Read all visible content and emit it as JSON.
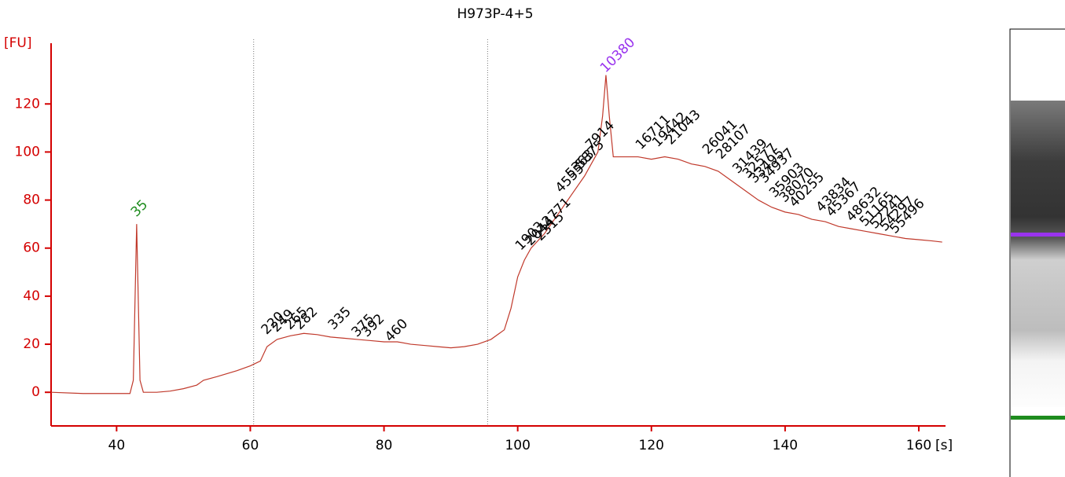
{
  "chart_data": {
    "type": "line",
    "title": "H973P-4+5",
    "ylabel": "[FU]",
    "xlabel": "[s]",
    "color": "#c0392b",
    "axis_color": "#d40000",
    "xlim": [
      30.2,
      164
    ],
    "ylim": [
      -14,
      142
    ],
    "xticks": [
      40,
      60,
      80,
      100,
      120,
      140,
      160
    ],
    "yticks": [
      0,
      20,
      40,
      60,
      80,
      100,
      120
    ],
    "vlines": [
      60.5,
      95.5
    ],
    "x": [
      30.2,
      35,
      38,
      42,
      42.5,
      43,
      43.5,
      44,
      46,
      48,
      50,
      52,
      53,
      55,
      58,
      60,
      61.5,
      62.5,
      64,
      66,
      68,
      70,
      72,
      74,
      76,
      78,
      80,
      82,
      84,
      86,
      88,
      90,
      92,
      94,
      96,
      98,
      99,
      100,
      101,
      102,
      104,
      106,
      108,
      110,
      111,
      112,
      112.7,
      113.2,
      113.7,
      114.3,
      116,
      118,
      120,
      122,
      124,
      126,
      128,
      130,
      132,
      134,
      136,
      138,
      140,
      142,
      144,
      146,
      148,
      150,
      152,
      154,
      156,
      158,
      160,
      162,
      163.5
    ],
    "y": [
      0,
      -0.5,
      -0.5,
      -0.5,
      5,
      70,
      5,
      0,
      0,
      0.5,
      1.5,
      3,
      5,
      6.5,
      9,
      11,
      13,
      19,
      22,
      23.5,
      24.5,
      24,
      23,
      22.5,
      22,
      21.5,
      21,
      21,
      20,
      19.5,
      19,
      18.5,
      19,
      20,
      22,
      26,
      35,
      48,
      55,
      60,
      66,
      74,
      82,
      90,
      95,
      100,
      115,
      132,
      115,
      98,
      98,
      98,
      97,
      98,
      97,
      95,
      94,
      92,
      88,
      84,
      80,
      77,
      75,
      74,
      72,
      71,
      69,
      68,
      67,
      66,
      65,
      64,
      63.5,
      63,
      62.5
    ],
    "peaks": [
      {
        "label": "35",
        "x": 43,
        "y": 72,
        "color": "#1e8c1e"
      },
      {
        "label": "220",
        "x": 62.5,
        "y": 23,
        "color": "#000000"
      },
      {
        "label": "249",
        "x": 64,
        "y": 24,
        "color": "#000000"
      },
      {
        "label": "265",
        "x": 66,
        "y": 25,
        "color": "#000000"
      },
      {
        "label": "282",
        "x": 67.5,
        "y": 25,
        "color": "#000000"
      },
      {
        "label": "335",
        "x": 72.5,
        "y": 25,
        "color": "#000000"
      },
      {
        "label": "375",
        "x": 76,
        "y": 22,
        "color": "#000000"
      },
      {
        "label": "392",
        "x": 77.5,
        "y": 22,
        "color": "#000000"
      },
      {
        "label": "460",
        "x": 81,
        "y": 20,
        "color": "#000000"
      },
      {
        "label": "1903",
        "x": 100.5,
        "y": 58,
        "color": "#000000"
      },
      {
        "label": "2044",
        "x": 102,
        "y": 60,
        "color": "#000000"
      },
      {
        "label": "2315",
        "x": 103.5,
        "y": 62,
        "color": "#000000"
      },
      {
        "label": "2771",
        "x": 104.5,
        "y": 68,
        "color": "#000000"
      },
      {
        "label": "4555",
        "x": 106.5,
        "y": 82,
        "color": "#000000"
      },
      {
        "label": "5363",
        "x": 108,
        "y": 88,
        "color": "#000000"
      },
      {
        "label": "5875",
        "x": 109.5,
        "y": 92,
        "color": "#000000"
      },
      {
        "label": "7914",
        "x": 111,
        "y": 100,
        "color": "#000000"
      },
      {
        "label": "10380",
        "x": 113.2,
        "y": 132,
        "color": "#9933ee"
      },
      {
        "label": "16711",
        "x": 118.5,
        "y": 100,
        "color": "#000000"
      },
      {
        "label": "19442",
        "x": 121,
        "y": 101,
        "color": "#000000"
      },
      {
        "label": "21043",
        "x": 123,
        "y": 102,
        "color": "#000000"
      },
      {
        "label": "26041",
        "x": 128.5,
        "y": 98,
        "color": "#000000"
      },
      {
        "label": "28107",
        "x": 130.5,
        "y": 96,
        "color": "#000000"
      },
      {
        "label": "31439",
        "x": 133,
        "y": 90,
        "color": "#000000"
      },
      {
        "label": "32577",
        "x": 134.5,
        "y": 88,
        "color": "#000000"
      },
      {
        "label": "33495",
        "x": 135.5,
        "y": 86,
        "color": "#000000"
      },
      {
        "label": "34937",
        "x": 137,
        "y": 86,
        "color": "#000000"
      },
      {
        "label": "35903",
        "x": 138.5,
        "y": 80,
        "color": "#000000"
      },
      {
        "label": "38070",
        "x": 140,
        "y": 78,
        "color": "#000000"
      },
      {
        "label": "40255",
        "x": 141.5,
        "y": 76,
        "color": "#000000"
      },
      {
        "label": "43834",
        "x": 145.5,
        "y": 74,
        "color": "#000000"
      },
      {
        "label": "45367",
        "x": 147,
        "y": 72,
        "color": "#000000"
      },
      {
        "label": "48632",
        "x": 150,
        "y": 70,
        "color": "#000000"
      },
      {
        "label": "51165",
        "x": 152,
        "y": 68,
        "color": "#000000"
      },
      {
        "label": "52241",
        "x": 153.5,
        "y": 67,
        "color": "#000000"
      },
      {
        "label": "54297",
        "x": 155,
        "y": 66,
        "color": "#000000"
      },
      {
        "label": "55496",
        "x": 156.5,
        "y": 65,
        "color": "#000000"
      }
    ]
  }
}
